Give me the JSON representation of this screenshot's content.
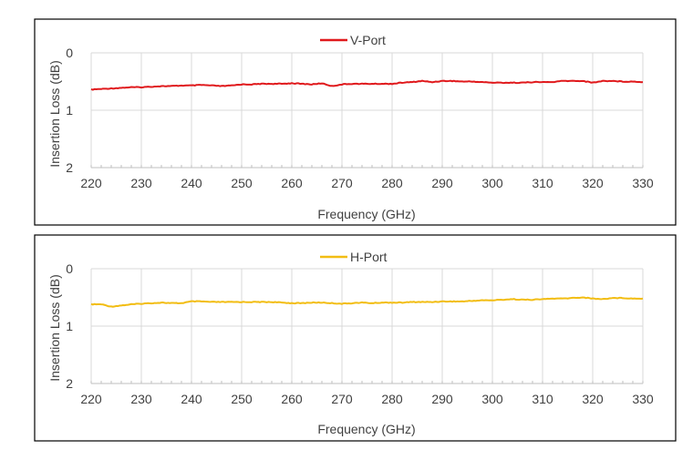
{
  "chart_data": [
    {
      "type": "line",
      "title": "",
      "xlabel": "Frequency (GHz)",
      "ylabel": "Insertion Loss (dB)",
      "xlim": [
        220,
        330
      ],
      "ylim": [
        0,
        2
      ],
      "y_inverted": true,
      "x_ticks": [
        220,
        230,
        240,
        250,
        260,
        270,
        280,
        290,
        300,
        310,
        320,
        330
      ],
      "y_ticks": [
        0,
        1,
        2
      ],
      "grid": "vertical",
      "legend_position": "top-center",
      "series": [
        {
          "name": "V-Port",
          "color": "#e0191c",
          "x": [
            220,
            222,
            224,
            226,
            228,
            230,
            232,
            234,
            236,
            238,
            240,
            242,
            244,
            246,
            248,
            250,
            252,
            254,
            256,
            258,
            260,
            262,
            264,
            266,
            268,
            270,
            272,
            274,
            276,
            278,
            280,
            282,
            284,
            286,
            288,
            290,
            292,
            294,
            296,
            298,
            300,
            302,
            304,
            306,
            308,
            310,
            312,
            314,
            316,
            318,
            320,
            322,
            324,
            326,
            328,
            330
          ],
          "values": [
            0.64,
            0.63,
            0.62,
            0.61,
            0.6,
            0.6,
            0.59,
            0.58,
            0.58,
            0.57,
            0.57,
            0.56,
            0.57,
            0.58,
            0.57,
            0.55,
            0.55,
            0.54,
            0.54,
            0.54,
            0.53,
            0.54,
            0.55,
            0.53,
            0.58,
            0.55,
            0.54,
            0.54,
            0.54,
            0.54,
            0.54,
            0.52,
            0.51,
            0.49,
            0.51,
            0.49,
            0.49,
            0.5,
            0.5,
            0.51,
            0.52,
            0.52,
            0.52,
            0.52,
            0.51,
            0.51,
            0.51,
            0.49,
            0.49,
            0.49,
            0.52,
            0.49,
            0.49,
            0.5,
            0.5,
            0.51
          ]
        }
      ]
    },
    {
      "type": "line",
      "title": "",
      "xlabel": "Frequency (GHz)",
      "ylabel": "Insertion Loss (dB)",
      "xlim": [
        220,
        330
      ],
      "ylim": [
        0,
        2
      ],
      "y_inverted": true,
      "x_ticks": [
        220,
        230,
        240,
        250,
        260,
        270,
        280,
        290,
        300,
        310,
        320,
        330
      ],
      "y_ticks": [
        0,
        1,
        2
      ],
      "grid": "vertical",
      "legend_position": "top-center",
      "series": [
        {
          "name": "H-Port",
          "color": "#f2bd13",
          "x": [
            220,
            222,
            224,
            226,
            228,
            230,
            232,
            234,
            236,
            238,
            240,
            242,
            244,
            246,
            248,
            250,
            252,
            254,
            256,
            258,
            260,
            262,
            264,
            266,
            268,
            270,
            272,
            274,
            276,
            278,
            280,
            282,
            284,
            286,
            288,
            290,
            292,
            294,
            296,
            298,
            300,
            302,
            304,
            306,
            308,
            310,
            312,
            314,
            316,
            318,
            320,
            322,
            324,
            326,
            328,
            330
          ],
          "values": [
            0.62,
            0.62,
            0.66,
            0.64,
            0.62,
            0.61,
            0.6,
            0.59,
            0.6,
            0.6,
            0.57,
            0.57,
            0.58,
            0.58,
            0.58,
            0.58,
            0.58,
            0.58,
            0.58,
            0.59,
            0.6,
            0.6,
            0.59,
            0.59,
            0.6,
            0.61,
            0.6,
            0.59,
            0.6,
            0.59,
            0.59,
            0.59,
            0.58,
            0.58,
            0.58,
            0.57,
            0.57,
            0.57,
            0.56,
            0.55,
            0.55,
            0.54,
            0.53,
            0.54,
            0.54,
            0.53,
            0.52,
            0.52,
            0.51,
            0.5,
            0.52,
            0.53,
            0.51,
            0.51,
            0.52,
            0.52
          ]
        }
      ]
    }
  ]
}
